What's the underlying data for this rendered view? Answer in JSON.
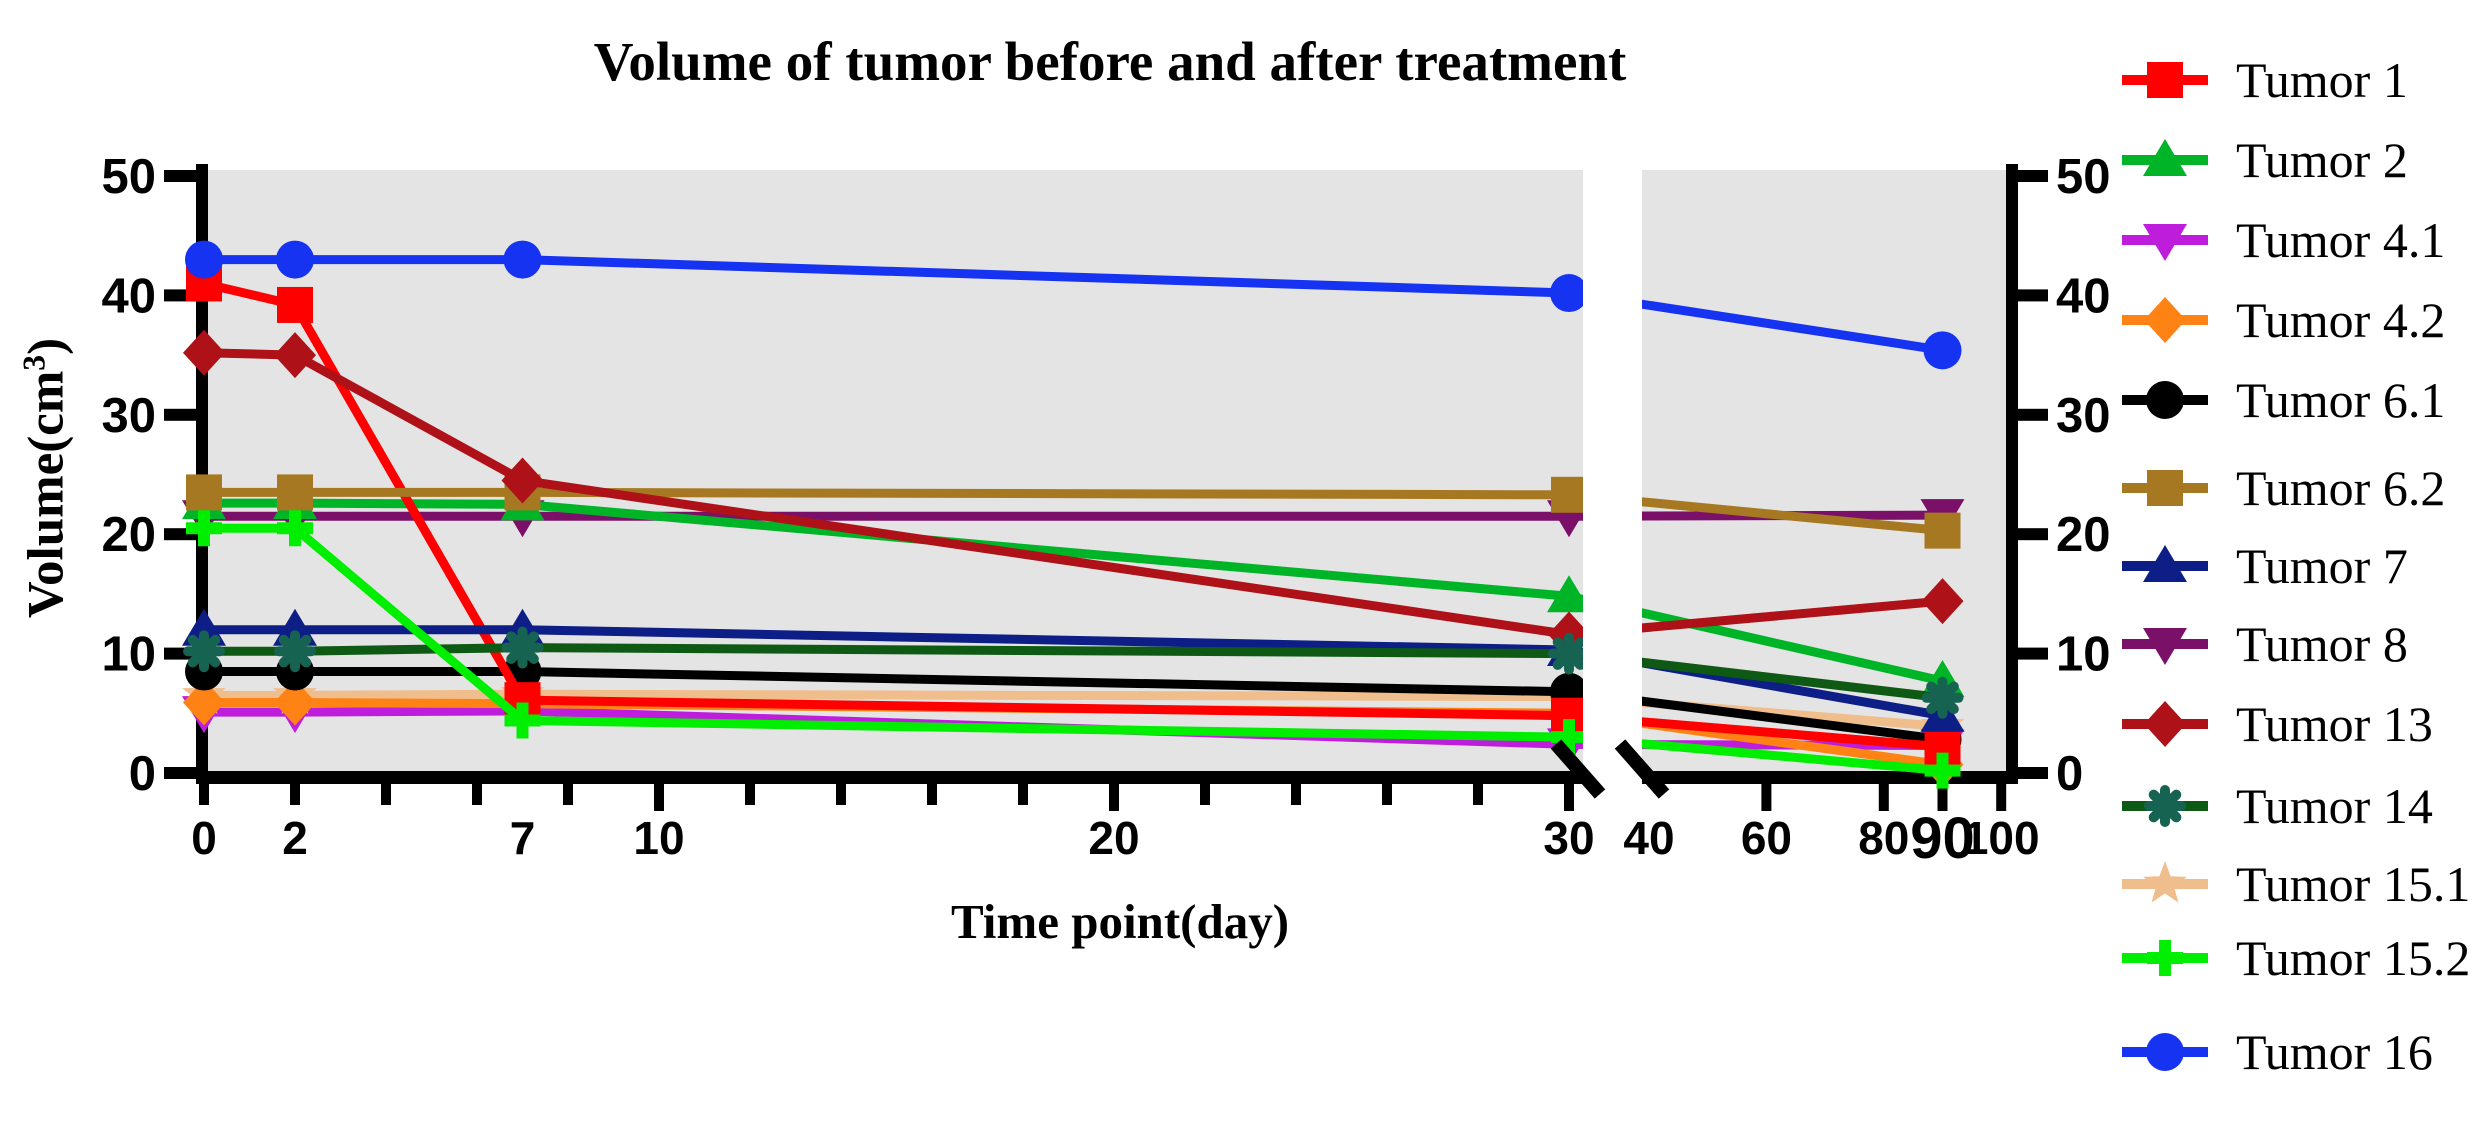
{
  "title": "Volume of tumor before and after treatment",
  "x_axis": {
    "label": "Time point(day)",
    "left_tick_labels": [
      {
        "label": "0",
        "day": 0
      },
      {
        "label": "2",
        "day": 2
      },
      {
        "label": "7",
        "day": 7
      },
      {
        "label": "10",
        "day": 10
      },
      {
        "label": "20",
        "day": 20
      },
      {
        "label": "30",
        "day": 30
      }
    ],
    "right_tick_labels": [
      {
        "label": "40",
        "day": 40
      },
      {
        "label": "60",
        "day": 60
      },
      {
        "label": "80",
        "day": 80
      },
      {
        "label": "90",
        "day": 90,
        "emphasized": true
      },
      {
        "label": "100",
        "day": 100
      }
    ]
  },
  "y_axis": {
    "label_main": "Volume(cm",
    "label_sup": "3",
    "label_close": ")",
    "tick_labels": [
      "0",
      "10",
      "20",
      "30",
      "40",
      "50"
    ],
    "tick_values": [
      0,
      10,
      20,
      30,
      40,
      50
    ]
  },
  "chart_data": {
    "type": "line",
    "x": [
      0,
      2,
      7,
      30,
      90
    ],
    "xlabel": "Time point(day)",
    "ylabel": "Volume(cm3)",
    "ylim": [
      0,
      50
    ],
    "x_break_between": [
      30,
      40
    ],
    "grid": false,
    "plot_bg": "#E4E4E4",
    "legend_position": "right",
    "series": [
      {
        "name": "Tumor 1",
        "color": "#FF0000",
        "marker": "square",
        "values": [
          41.0,
          39.2,
          6.1,
          4.8,
          2.2
        ]
      },
      {
        "name": "Tumor 2",
        "color": "#00B428",
        "marker": "triangle-up",
        "values": [
          22.6,
          22.6,
          22.5,
          14.8,
          7.7
        ]
      },
      {
        "name": "Tumor 4.1",
        "color": "#BE1EDC",
        "marker": "triangle-down",
        "values": [
          5.1,
          5.1,
          5.2,
          2.4,
          2.3
        ]
      },
      {
        "name": "Tumor 4.2",
        "color": "#FF8214",
        "marker": "diamond",
        "values": [
          5.9,
          5.9,
          5.8,
          5.0,
          0.7
        ]
      },
      {
        "name": "Tumor 6.1",
        "color": "#000000",
        "marker": "circle",
        "values": [
          8.5,
          8.5,
          8.5,
          6.8,
          2.8
        ]
      },
      {
        "name": "Tumor 6.2",
        "color": "#A67822",
        "marker": "square",
        "values": [
          23.5,
          23.5,
          23.5,
          23.3,
          20.3
        ]
      },
      {
        "name": "Tumor 7",
        "color": "#0D1F87",
        "marker": "triangle-up",
        "values": [
          12.0,
          12.0,
          12.0,
          10.3,
          4.8
        ]
      },
      {
        "name": "Tumor 8",
        "color": "#7B1069",
        "marker": "triangle-down",
        "values": [
          21.5,
          21.5,
          21.5,
          21.5,
          21.6
        ]
      },
      {
        "name": "Tumor 13",
        "color": "#AE1117",
        "marker": "diamond",
        "values": [
          35.2,
          35.0,
          24.5,
          11.6,
          14.4
        ]
      },
      {
        "name": "Tumor 14",
        "color": "#0E5A14",
        "marker": "asterisk",
        "marker_color": "#176352",
        "values": [
          10.2,
          10.2,
          10.5,
          10.0,
          6.3
        ]
      },
      {
        "name": "Tumor 15.1",
        "color": "#F0BE8C",
        "marker": "star",
        "values": [
          6.5,
          6.5,
          6.6,
          6.4,
          3.9
        ]
      },
      {
        "name": "Tumor 15.2",
        "color": "#00EE00",
        "marker": "plus",
        "values": [
          20.5,
          20.5,
          4.4,
          3.0,
          0.2
        ]
      },
      {
        "name": "Tumor 16",
        "color": "#1533F0",
        "marker": "circle",
        "values": [
          43.0,
          43.0,
          43.0,
          40.2,
          35.4
        ]
      }
    ]
  }
}
